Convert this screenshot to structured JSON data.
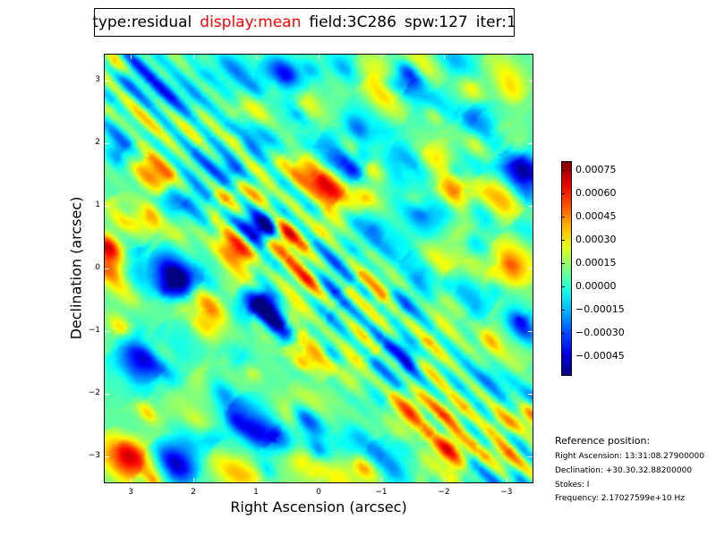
{
  "title": {
    "type": "type:residual",
    "display": "display:mean",
    "field": "field:3C286",
    "spw": "spw:127",
    "iter": "iter:1",
    "display_color": "#ff0000"
  },
  "reference": {
    "heading": "Reference position:",
    "ra": "Right Ascension: 13:31:08.27900000",
    "dec": "Declination: +30.30.32.88200000",
    "stokes": "Stokes: I",
    "frequency": "Frequency: 2.17027599e+10 Hz"
  },
  "chart_data": {
    "type": "heatmap",
    "colormap": "jet",
    "xlabel": "Right Ascension (arcsec)",
    "ylabel": "Declination (arcsec)",
    "xlim": [
      3.43,
      -3.43
    ],
    "ylim": [
      -3.43,
      3.43
    ],
    "xticks": [
      3,
      2,
      1,
      0,
      -1,
      -2,
      -3
    ],
    "xtick_labels": [
      "3",
      "2",
      "1",
      "0",
      "−1",
      "−2",
      "−3"
    ],
    "yticks": [
      3,
      2,
      1,
      0,
      -1,
      -2,
      -3
    ],
    "ytick_labels": [
      "3",
      "2",
      "1",
      "0",
      "−1",
      "−2",
      "−3"
    ],
    "grid": false,
    "colorbar": {
      "range": [
        -0.00058,
        0.00081
      ],
      "ticks": [
        0.00075,
        0.0006,
        0.00045,
        0.0003,
        0.00015,
        0.0,
        -0.00015,
        -0.0003,
        -0.00045
      ],
      "tick_labels": [
        "0.00075",
        "0.00060",
        "0.00045",
        "0.00030",
        "0.00015",
        "0.00000",
        "−0.00015",
        "−0.00030",
        "−0.00045"
      ]
    }
  }
}
